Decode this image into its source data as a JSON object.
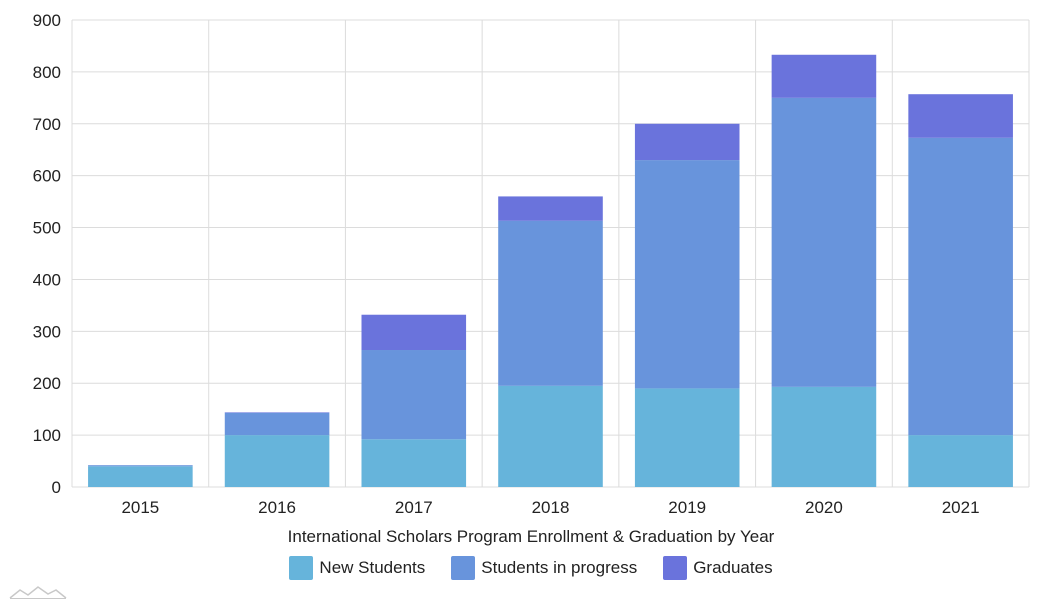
{
  "colors": {
    "new_students": "#66b4db",
    "in_progress": "#6894dc",
    "graduates": "#6a73dc",
    "grid": "#dcdcdc",
    "axis_text": "#222222"
  },
  "chart_data": {
    "type": "bar",
    "stacked": true,
    "title": "",
    "xlabel": "International Scholars Program Enrollment & Graduation by Year",
    "ylabel": "",
    "ylim": [
      0,
      900
    ],
    "yticks": [
      0,
      100,
      200,
      300,
      400,
      500,
      600,
      700,
      800,
      900
    ],
    "categories": [
      "2015",
      "2016",
      "2017",
      "2018",
      "2019",
      "2020",
      "2021"
    ],
    "series": [
      {
        "name": "New Students",
        "values": [
          40,
          100,
          92,
          195,
          190,
          193,
          100
        ]
      },
      {
        "name": "Students in progress",
        "values": [
          2,
          43,
          172,
          318,
          440,
          557,
          573
        ]
      },
      {
        "name": "Graduates",
        "values": [
          0,
          1,
          68,
          47,
          70,
          83,
          84
        ]
      }
    ],
    "grid": true,
    "legend_position": "bottom"
  }
}
